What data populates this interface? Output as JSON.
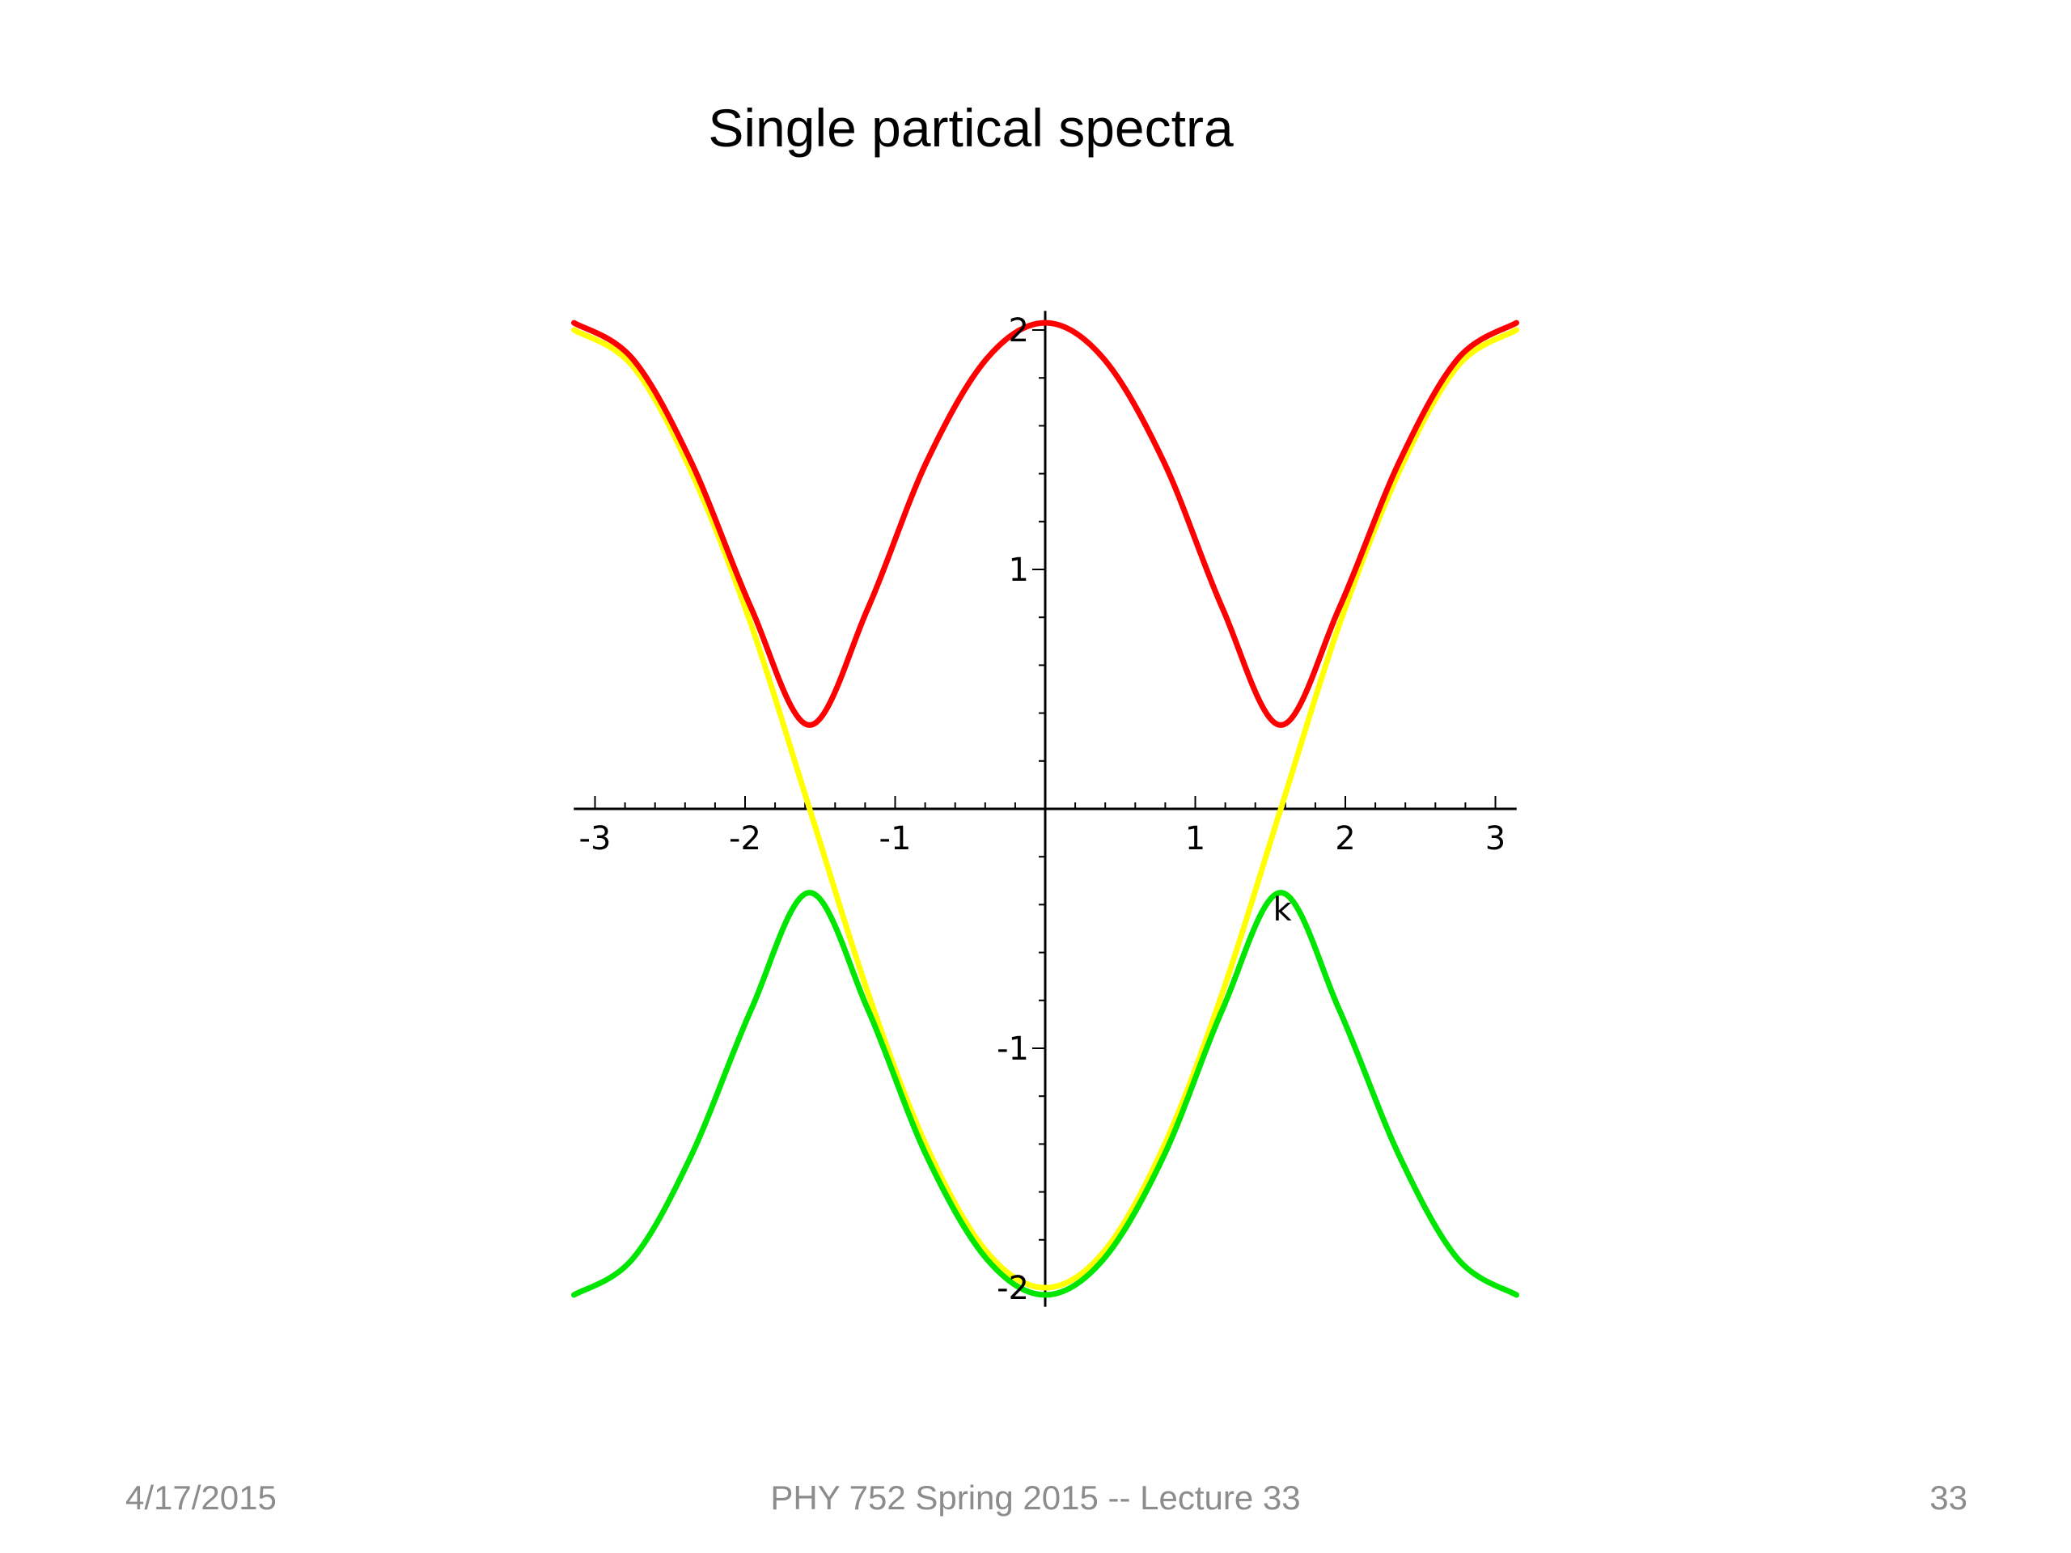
{
  "slide": {
    "title": "Single partical spectra",
    "footer": {
      "date": "4/17/2015",
      "course": "PHY 752  Spring 2015 -- Lecture 33",
      "page": "33"
    }
  },
  "chart_data": {
    "type": "line",
    "title": "Single partical spectra",
    "xlabel": "k",
    "ylabel": "",
    "xlim": [
      -3.14159,
      3.14159
    ],
    "ylim": [
      -2.08,
      2.08
    ],
    "x_ticks": [
      -3,
      -2,
      -1,
      1,
      2,
      3
    ],
    "x_tick_labels": [
      "-3",
      "-2",
      "-1",
      "1",
      "2",
      "3"
    ],
    "y_ticks": [
      2,
      1,
      -1,
      -2
    ],
    "y_tick_labels": [
      "2",
      "1",
      "-1",
      "-2"
    ],
    "grid": false,
    "legend": "none",
    "series": [
      {
        "color": "#ffff00",
        "x": [
          -3.14,
          -2.75,
          -2.36,
          -1.96,
          -1.57,
          -1.18,
          -0.79,
          -0.39,
          0.0,
          0.39,
          0.79,
          1.18,
          1.57,
          1.96,
          2.36,
          2.75,
          3.14
        ],
        "y": [
          2.0,
          1.85,
          1.41,
          0.77,
          0.0,
          -0.77,
          -1.41,
          -1.85,
          -2.0,
          -1.85,
          -1.41,
          -0.77,
          0.0,
          0.77,
          1.41,
          1.85,
          2.0
        ]
      },
      {
        "color": "#ff0000",
        "x": [
          -3.14,
          -2.75,
          -2.36,
          -1.96,
          -1.57,
          -1.18,
          -0.79,
          -0.39,
          0.0,
          0.39,
          0.79,
          1.18,
          1.57,
          1.96,
          2.36,
          2.75,
          3.14
        ],
        "y": [
          2.03,
          1.88,
          1.45,
          0.84,
          0.35,
          0.84,
          1.45,
          1.88,
          2.03,
          1.88,
          1.45,
          0.84,
          0.35,
          0.84,
          1.45,
          1.88,
          2.03
        ]
      },
      {
        "color": "#00e600",
        "x": [
          -3.14,
          -2.75,
          -2.36,
          -1.96,
          -1.57,
          -1.18,
          -0.79,
          -0.39,
          0.0,
          0.39,
          0.79,
          1.18,
          1.57,
          1.96,
          2.36,
          2.75,
          3.14
        ],
        "y": [
          -2.03,
          -1.88,
          -1.45,
          -0.84,
          -0.35,
          -0.84,
          -1.45,
          -1.88,
          -2.03,
          -1.88,
          -1.45,
          -0.84,
          -0.35,
          -0.84,
          -1.45,
          -1.88,
          -2.03
        ]
      }
    ]
  }
}
